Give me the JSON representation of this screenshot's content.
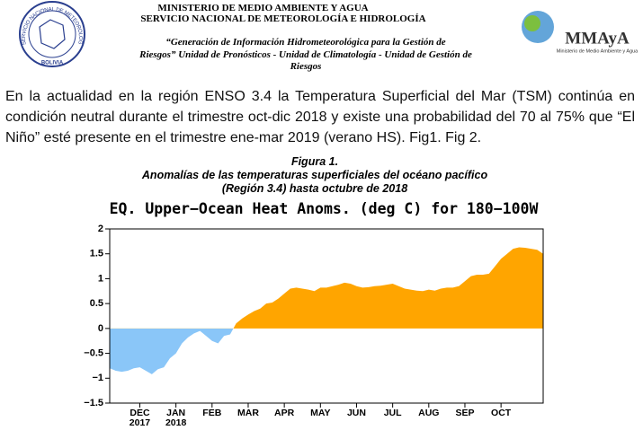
{
  "header": {
    "ministry": "MINISTERIO DE MEDIO AMBIENTE Y AGUA",
    "service": "SERVICIO NACIONAL DE METEOROLOGÍA E HIDROLOGÍA",
    "motto": [
      "“Generación de Información Hidrometeorológica para la Gestión de",
      "Riesgos” Unidad de Pronósticos - Unidad de Climatología - Unidad de Gestión de",
      "Riesgos"
    ],
    "logo_left": {
      "ring": "SERVICIO NACIONAL DE METEOROLOGIA E HIDROLOGIA",
      "country": "BOLIVIA"
    },
    "logo_right": {
      "name": "MMAyA",
      "subtitle": "Ministerio de Medio Ambiente y Agua"
    }
  },
  "body": {
    "paragraph": "En la actualidad en la región ENSO 3.4 la Temperatura Superficial del Mar (TSM) continúa en condición neutral durante el trimestre oct-dic 2018 y existe una probabilidad del 70 al 75% que “El Niño” esté presente en el trimestre ene-mar 2019 (verano HS). Fig1. Fig 2."
  },
  "figure": {
    "label": "Figura 1.",
    "caption": [
      "Anomalías de las temperaturas superficiales del océano pacífico",
      "(Región 3.4) hasta octubre de 2018"
    ]
  },
  "chart_data": {
    "type": "area",
    "title": "EQ. Upper−Ocean Heat Anoms. (deg C) for 180−100W",
    "categories": [
      null,
      null,
      null,
      null,
      null,
      "DEC\n2017",
      null,
      null,
      null,
      null,
      null,
      "JAN\n2018",
      null,
      null,
      null,
      null,
      null,
      "FEB",
      null,
      null,
      null,
      null,
      null,
      "MAR",
      null,
      null,
      null,
      null,
      null,
      "APR",
      null,
      null,
      null,
      null,
      null,
      "MAY",
      null,
      null,
      null,
      null,
      null,
      "JUN",
      null,
      null,
      null,
      null,
      null,
      "JUL",
      null,
      null,
      null,
      null,
      null,
      "AUG",
      null,
      null,
      null,
      null,
      null,
      "SEP",
      null,
      null,
      null,
      null,
      null,
      "OCT",
      null,
      null,
      null,
      null,
      null,
      null,
      null
    ],
    "values": [
      -0.8,
      -0.85,
      -0.87,
      -0.85,
      -0.8,
      -0.78,
      -0.85,
      -0.92,
      -0.82,
      -0.78,
      -0.6,
      -0.5,
      -0.3,
      -0.18,
      -0.1,
      -0.05,
      -0.15,
      -0.25,
      -0.3,
      -0.15,
      -0.12,
      0.1,
      0.2,
      0.28,
      0.35,
      0.4,
      0.5,
      0.52,
      0.6,
      0.7,
      0.8,
      0.82,
      0.8,
      0.78,
      0.75,
      0.82,
      0.82,
      0.85,
      0.88,
      0.92,
      0.9,
      0.85,
      0.82,
      0.83,
      0.85,
      0.86,
      0.88,
      0.9,
      0.85,
      0.8,
      0.78,
      0.76,
      0.75,
      0.78,
      0.76,
      0.8,
      0.82,
      0.82,
      0.85,
      0.95,
      1.05,
      1.08,
      1.08,
      1.1,
      1.25,
      1.4,
      1.5,
      1.6,
      1.63,
      1.62,
      1.6,
      1.58,
      1.5
    ],
    "positive_color": "#ffa500",
    "negative_color": "#8ac6f8",
    "ylim": [
      -1.5,
      2
    ],
    "yticks": [
      {
        "value": -1.5,
        "label": "−1.5"
      },
      {
        "value": -1,
        "label": "−1"
      },
      {
        "value": -0.5,
        "label": "−0.5"
      },
      0,
      0.5,
      1,
      1.5,
      2
    ]
  }
}
